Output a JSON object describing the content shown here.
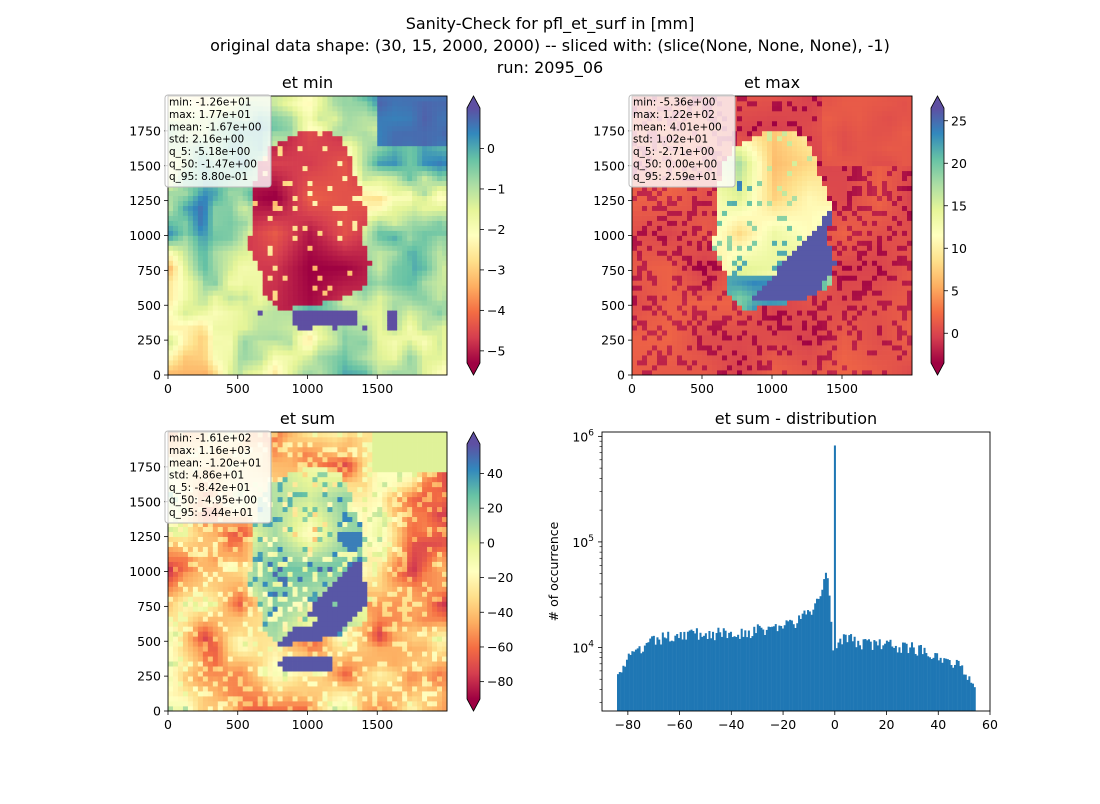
{
  "figure": {
    "title_lines": [
      "Sanity-Check for pfl_et_surf in [mm]",
      "original data shape: (30, 15, 2000, 2000) -- sliced with: (slice(None, None, None), -1)",
      "run: 2095_06"
    ]
  },
  "chart_data": [
    {
      "type": "heatmap",
      "title": "et min",
      "x_ticks": [
        0,
        500,
        1000,
        1500
      ],
      "y_ticks": [
        0,
        250,
        500,
        750,
        1000,
        1250,
        1500,
        1750
      ],
      "xlim": [
        0,
        2000
      ],
      "ylim": [
        0,
        2000
      ],
      "colormap": "Spectral",
      "colorbar": {
        "vmin": -5.3,
        "vmax": 1.0,
        "ticks": [
          0,
          -1,
          -2,
          -3,
          -4,
          -5
        ],
        "extend": "both"
      },
      "stats": [
        "min: -1.26e+01",
        "max: 1.77e+01",
        "mean: -1.67e+00",
        "std: 2.16e+00",
        "q_5: -5.18e+00",
        "q_50: -1.47e+00",
        "q_95: 8.80e-01"
      ]
    },
    {
      "type": "heatmap",
      "title": "et max",
      "x_ticks": [
        0,
        500,
        1000,
        1500
      ],
      "y_ticks": [
        0,
        250,
        500,
        750,
        1000,
        1250,
        1500,
        1750
      ],
      "xlim": [
        0,
        2000
      ],
      "ylim": [
        0,
        2000
      ],
      "colormap": "Spectral",
      "colorbar": {
        "vmin": -3.5,
        "vmax": 26.5,
        "ticks": [
          25,
          20,
          15,
          10,
          5,
          0
        ],
        "extend": "both"
      },
      "stats": [
        "min: -5.36e+00",
        "max: 1.22e+02",
        "mean: 4.01e+00",
        "std: 1.02e+01",
        "q_5: -2.71e+00",
        "q_50: 0.00e+00",
        "q_95: 2.59e+01"
      ]
    },
    {
      "type": "heatmap",
      "title": "et sum",
      "x_ticks": [
        0,
        500,
        1000,
        1500
      ],
      "y_ticks": [
        0,
        250,
        500,
        750,
        1000,
        1250,
        1500,
        1750
      ],
      "xlim": [
        0,
        2000
      ],
      "ylim": [
        0,
        2000
      ],
      "colormap": "Spectral",
      "colorbar": {
        "vmin": -90,
        "vmax": 57,
        "ticks": [
          40,
          20,
          0,
          -20,
          -40,
          -60,
          -80
        ],
        "extend": "both"
      },
      "stats": [
        "min: -1.61e+02",
        "max: 1.16e+03",
        "mean: -1.20e+01",
        "std: 4.86e+01",
        "q_5: -8.42e+01",
        "q_50: -4.95e+00",
        "q_95: 5.44e+01"
      ]
    },
    {
      "type": "bar",
      "title": "et sum - distribution",
      "ylabel": "# of occurrence",
      "xlabel": "",
      "yscale": "log",
      "xlim": [
        -90,
        60
      ],
      "ylim": [
        2500,
        1100000
      ],
      "x_ticks": [
        -80,
        -60,
        -40,
        -20,
        0,
        20,
        40,
        60
      ],
      "y_ticks": [
        {
          "value": 10000,
          "base": "10",
          "exp": "4"
        },
        {
          "value": 100000,
          "base": "10",
          "exp": "5"
        },
        {
          "value": 1000000,
          "base": "10",
          "exp": "6"
        }
      ],
      "bar_color": "#1f77b4",
      "bins": {
        "start": -84.2,
        "end": 54.4,
        "count": 200
      },
      "anchors_x": [
        -84,
        -82,
        -80,
        -70,
        -60,
        -50,
        -40,
        -30,
        -20,
        -15,
        -10,
        -7,
        -5,
        -4,
        -3,
        -2,
        -1,
        -0.5,
        0,
        0.5,
        1,
        3,
        5,
        10,
        20,
        30,
        40,
        45,
        50,
        54
      ],
      "anchors_y": [
        6500,
        6300,
        7800,
        11500,
        13500,
        13500,
        13500,
        14500,
        16000,
        17500,
        21000,
        26000,
        35000,
        45000,
        55000,
        30000,
        12000,
        10000,
        820000,
        11000,
        12000,
        12500,
        12000,
        11000,
        10500,
        10000,
        8500,
        7500,
        6000,
        4800
      ]
    }
  ]
}
